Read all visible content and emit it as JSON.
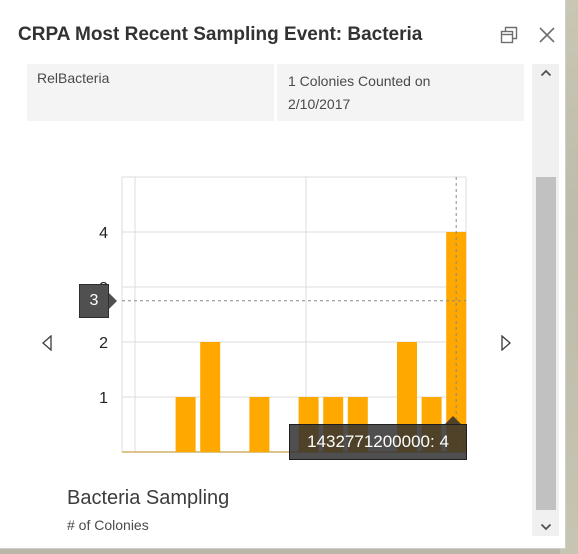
{
  "popup": {
    "title": "CRPA Most Recent Sampling Event: Bacteria",
    "dock_icon": "dock-icon",
    "close_icon": "close-icon"
  },
  "attributes": {
    "key": "RelBacteria",
    "value": "1 Colonies Counted on 2/10/2017"
  },
  "chart": {
    "title": "Bacteria Sampling",
    "caption": "# of Colonies",
    "prev_icon": "triangle-left-icon",
    "next_icon": "triangle-right-icon",
    "y_tooltip": "3",
    "bar_tooltip": "1432771200000: 4",
    "bar_color": "#ffa800"
  },
  "chart_data": {
    "type": "bar",
    "values": [
      0,
      1,
      2,
      0,
      1,
      0,
      1,
      1,
      1,
      0,
      2,
      1,
      4
    ],
    "ylim": [
      0,
      5
    ],
    "yticks": [
      "1",
      "2",
      "3",
      "4"
    ],
    "highlighted_index": 12,
    "grid": true
  },
  "scrollbar": {
    "up_icon": "scroll-up-icon",
    "down_icon": "scroll-down-icon"
  }
}
